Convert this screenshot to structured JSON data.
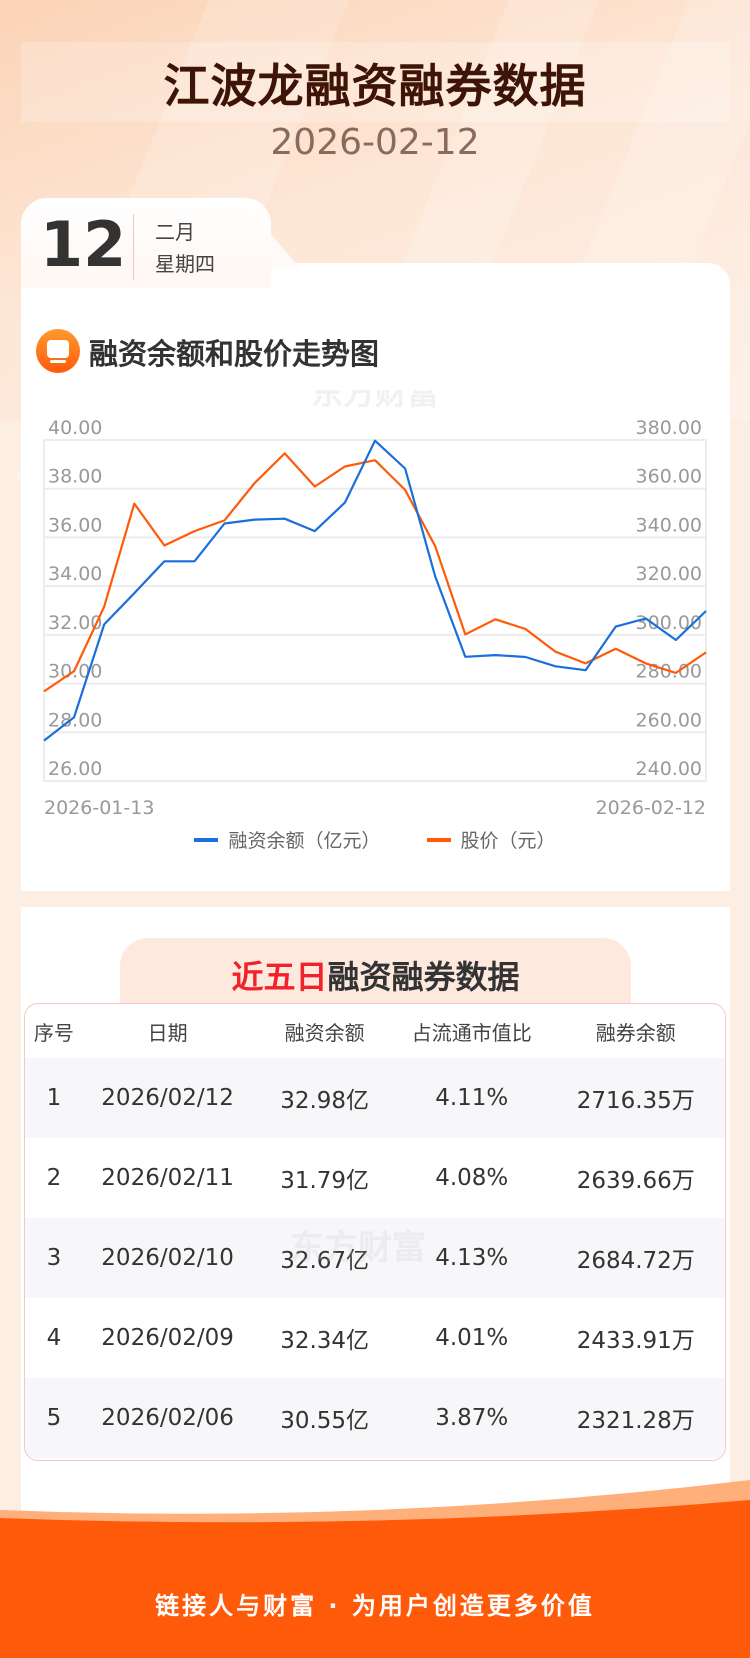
{
  "header": {
    "title": "江波龙融资融券数据",
    "date": "2026-02-12"
  },
  "date_tab": {
    "day": "12",
    "month": "二月",
    "weekday": "星期四"
  },
  "chart_section": {
    "title": "融资余额和股价走势图",
    "watermark": "东方财富"
  },
  "chart_data": {
    "type": "line",
    "title": "融资余额和股价走势图",
    "x": [
      "2026-01-13",
      "2026-01-14",
      "2026-01-15",
      "2026-01-16",
      "2026-01-19",
      "2026-01-20",
      "2026-01-21",
      "2026-01-22",
      "2026-01-23",
      "2026-01-26",
      "2026-01-27",
      "2026-01-28",
      "2026-01-29",
      "2026-01-30",
      "2026-02-02",
      "2026-02-03",
      "2026-02-04",
      "2026-02-05",
      "2026-02-06",
      "2026-02-09",
      "2026-02-10",
      "2026-02-11",
      "2026-02-12"
    ],
    "x_tick_labels": [
      "2026-01-13",
      "2026-02-12"
    ],
    "y_left": {
      "ylim": [
        26,
        40
      ],
      "ticks": [
        "26.00",
        "28.00",
        "30.00",
        "32.00",
        "34.00",
        "36.00",
        "38.00",
        "40.00"
      ]
    },
    "y_right": {
      "ylim": [
        240,
        380
      ],
      "ticks": [
        "240.00",
        "260.00",
        "280.00",
        "300.00",
        "320.00",
        "340.00",
        "360.00",
        "380.00"
      ]
    },
    "series": [
      {
        "name": "融资余额（亿元）",
        "axis": "left",
        "color": "#1a6fdb",
        "values": [
          27.66,
          28.62,
          32.43,
          33.71,
          35.02,
          35.02,
          36.57,
          36.73,
          36.77,
          36.26,
          37.43,
          39.97,
          38.83,
          34.4,
          31.1,
          31.17,
          31.09,
          30.71,
          30.55,
          32.34,
          32.67,
          31.79,
          32.98
        ]
      },
      {
        "name": "股价（元）",
        "axis": "right",
        "color": "#ff5a0a",
        "values": [
          276.8,
          285.1,
          311.6,
          353.9,
          336.7,
          342.6,
          347.0,
          362.3,
          374.5,
          360.9,
          369.1,
          371.7,
          359.5,
          336.4,
          300.2,
          306.4,
          302.4,
          293.1,
          288.3,
          294.3,
          288.3,
          284.4,
          292.8
        ]
      }
    ],
    "grid": true,
    "legend_position": "bottom"
  },
  "table_section": {
    "title_highlight": "近五日",
    "title_rest": "融资融券数据",
    "watermark": "东方财富"
  },
  "table": {
    "headers": [
      "序号",
      "日期",
      "融资余额",
      "占流通市值比",
      "融券余额"
    ],
    "rows": [
      [
        "1",
        "2026/02/12",
        "32.98亿",
        "4.11%",
        "2716.35万"
      ],
      [
        "2",
        "2026/02/11",
        "31.79亿",
        "4.08%",
        "2639.66万"
      ],
      [
        "3",
        "2026/02/10",
        "32.67亿",
        "4.13%",
        "2684.72万"
      ],
      [
        "4",
        "2026/02/09",
        "32.34亿",
        "4.01%",
        "2433.91万"
      ],
      [
        "5",
        "2026/02/06",
        "30.55亿",
        "3.87%",
        "2321.28万"
      ]
    ]
  },
  "footer": {
    "slogan": "链接人与财富 · 为用户创造更多价值"
  }
}
